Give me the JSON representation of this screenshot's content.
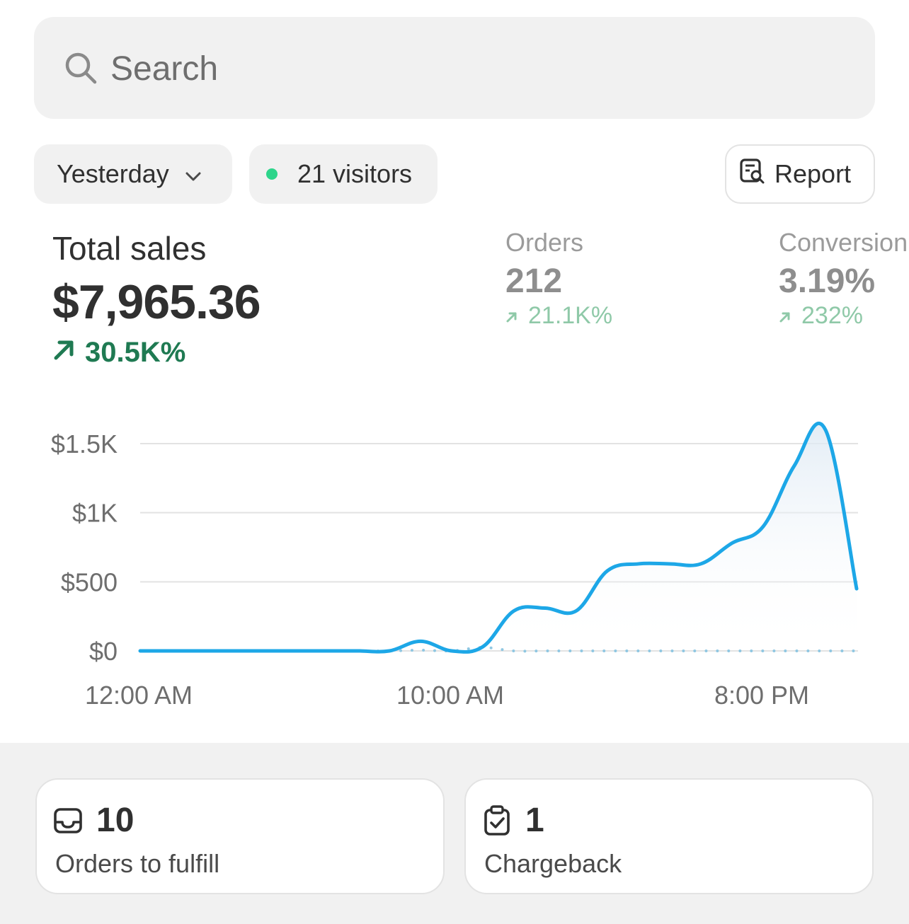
{
  "search": {
    "placeholder": "Search",
    "icon": "search-icon"
  },
  "filters": {
    "date_label": "Yesterday",
    "visitors_label": "21 visitors",
    "live_dot_color": "#2ed58b"
  },
  "report_button": {
    "label": "Report",
    "icon": "report-search-icon"
  },
  "metrics": {
    "total_sales": {
      "label": "Total sales",
      "value": "$7,965.36",
      "delta": "30.5K%",
      "delta_color": "#1f7a52"
    },
    "orders": {
      "label": "Orders",
      "value": "212",
      "delta": "21.1K%"
    },
    "conversion": {
      "label": "Conversion",
      "value": "3.19%",
      "delta": "232%"
    }
  },
  "chart_data": {
    "type": "line",
    "title": "",
    "xlabel": "",
    "ylabel": "",
    "y_ticks": [
      "$0",
      "$500",
      "$1K",
      "$1.5K"
    ],
    "y_tick_values": [
      0,
      500,
      1000,
      1500
    ],
    "x_ticks": [
      "12:00 AM",
      "10:00 AM",
      "8:00 PM"
    ],
    "x_tick_hours": [
      0,
      10,
      20
    ],
    "ylim": [
      0,
      1600
    ],
    "xlim": [
      0,
      23
    ],
    "grid": true,
    "series": [
      {
        "name": "",
        "color": "#1da7e7",
        "style": "solid",
        "x": [
          0,
          1,
          2,
          3,
          4,
          5,
          6,
          7,
          8,
          9,
          10,
          11,
          12,
          13,
          14,
          15,
          16,
          17,
          18,
          19,
          20,
          21,
          22,
          23
        ],
        "values": [
          0,
          0,
          0,
          0,
          0,
          0,
          0,
          0,
          0,
          70,
          0,
          30,
          290,
          310,
          290,
          580,
          630,
          630,
          630,
          780,
          900,
          1340,
          1600,
          450
        ]
      },
      {
        "name": "",
        "color": "#8fc7e2",
        "style": "dotted",
        "x": [
          0,
          1,
          2,
          3,
          4,
          5,
          6,
          7,
          8,
          9,
          10,
          11,
          12,
          13,
          14,
          15,
          16,
          17,
          18,
          19,
          20,
          21,
          22,
          23
        ],
        "values": [
          0,
          0,
          0,
          0,
          0,
          0,
          0,
          0,
          0,
          5,
          0,
          25,
          0,
          0,
          0,
          0,
          0,
          0,
          0,
          0,
          0,
          0,
          0,
          0
        ]
      }
    ]
  },
  "cards": [
    {
      "value": "10",
      "label": "Orders to fulfill",
      "icon": "inbox-icon"
    },
    {
      "value": "1",
      "label": "Chargeback",
      "icon": "clipboard-check-icon"
    }
  ]
}
